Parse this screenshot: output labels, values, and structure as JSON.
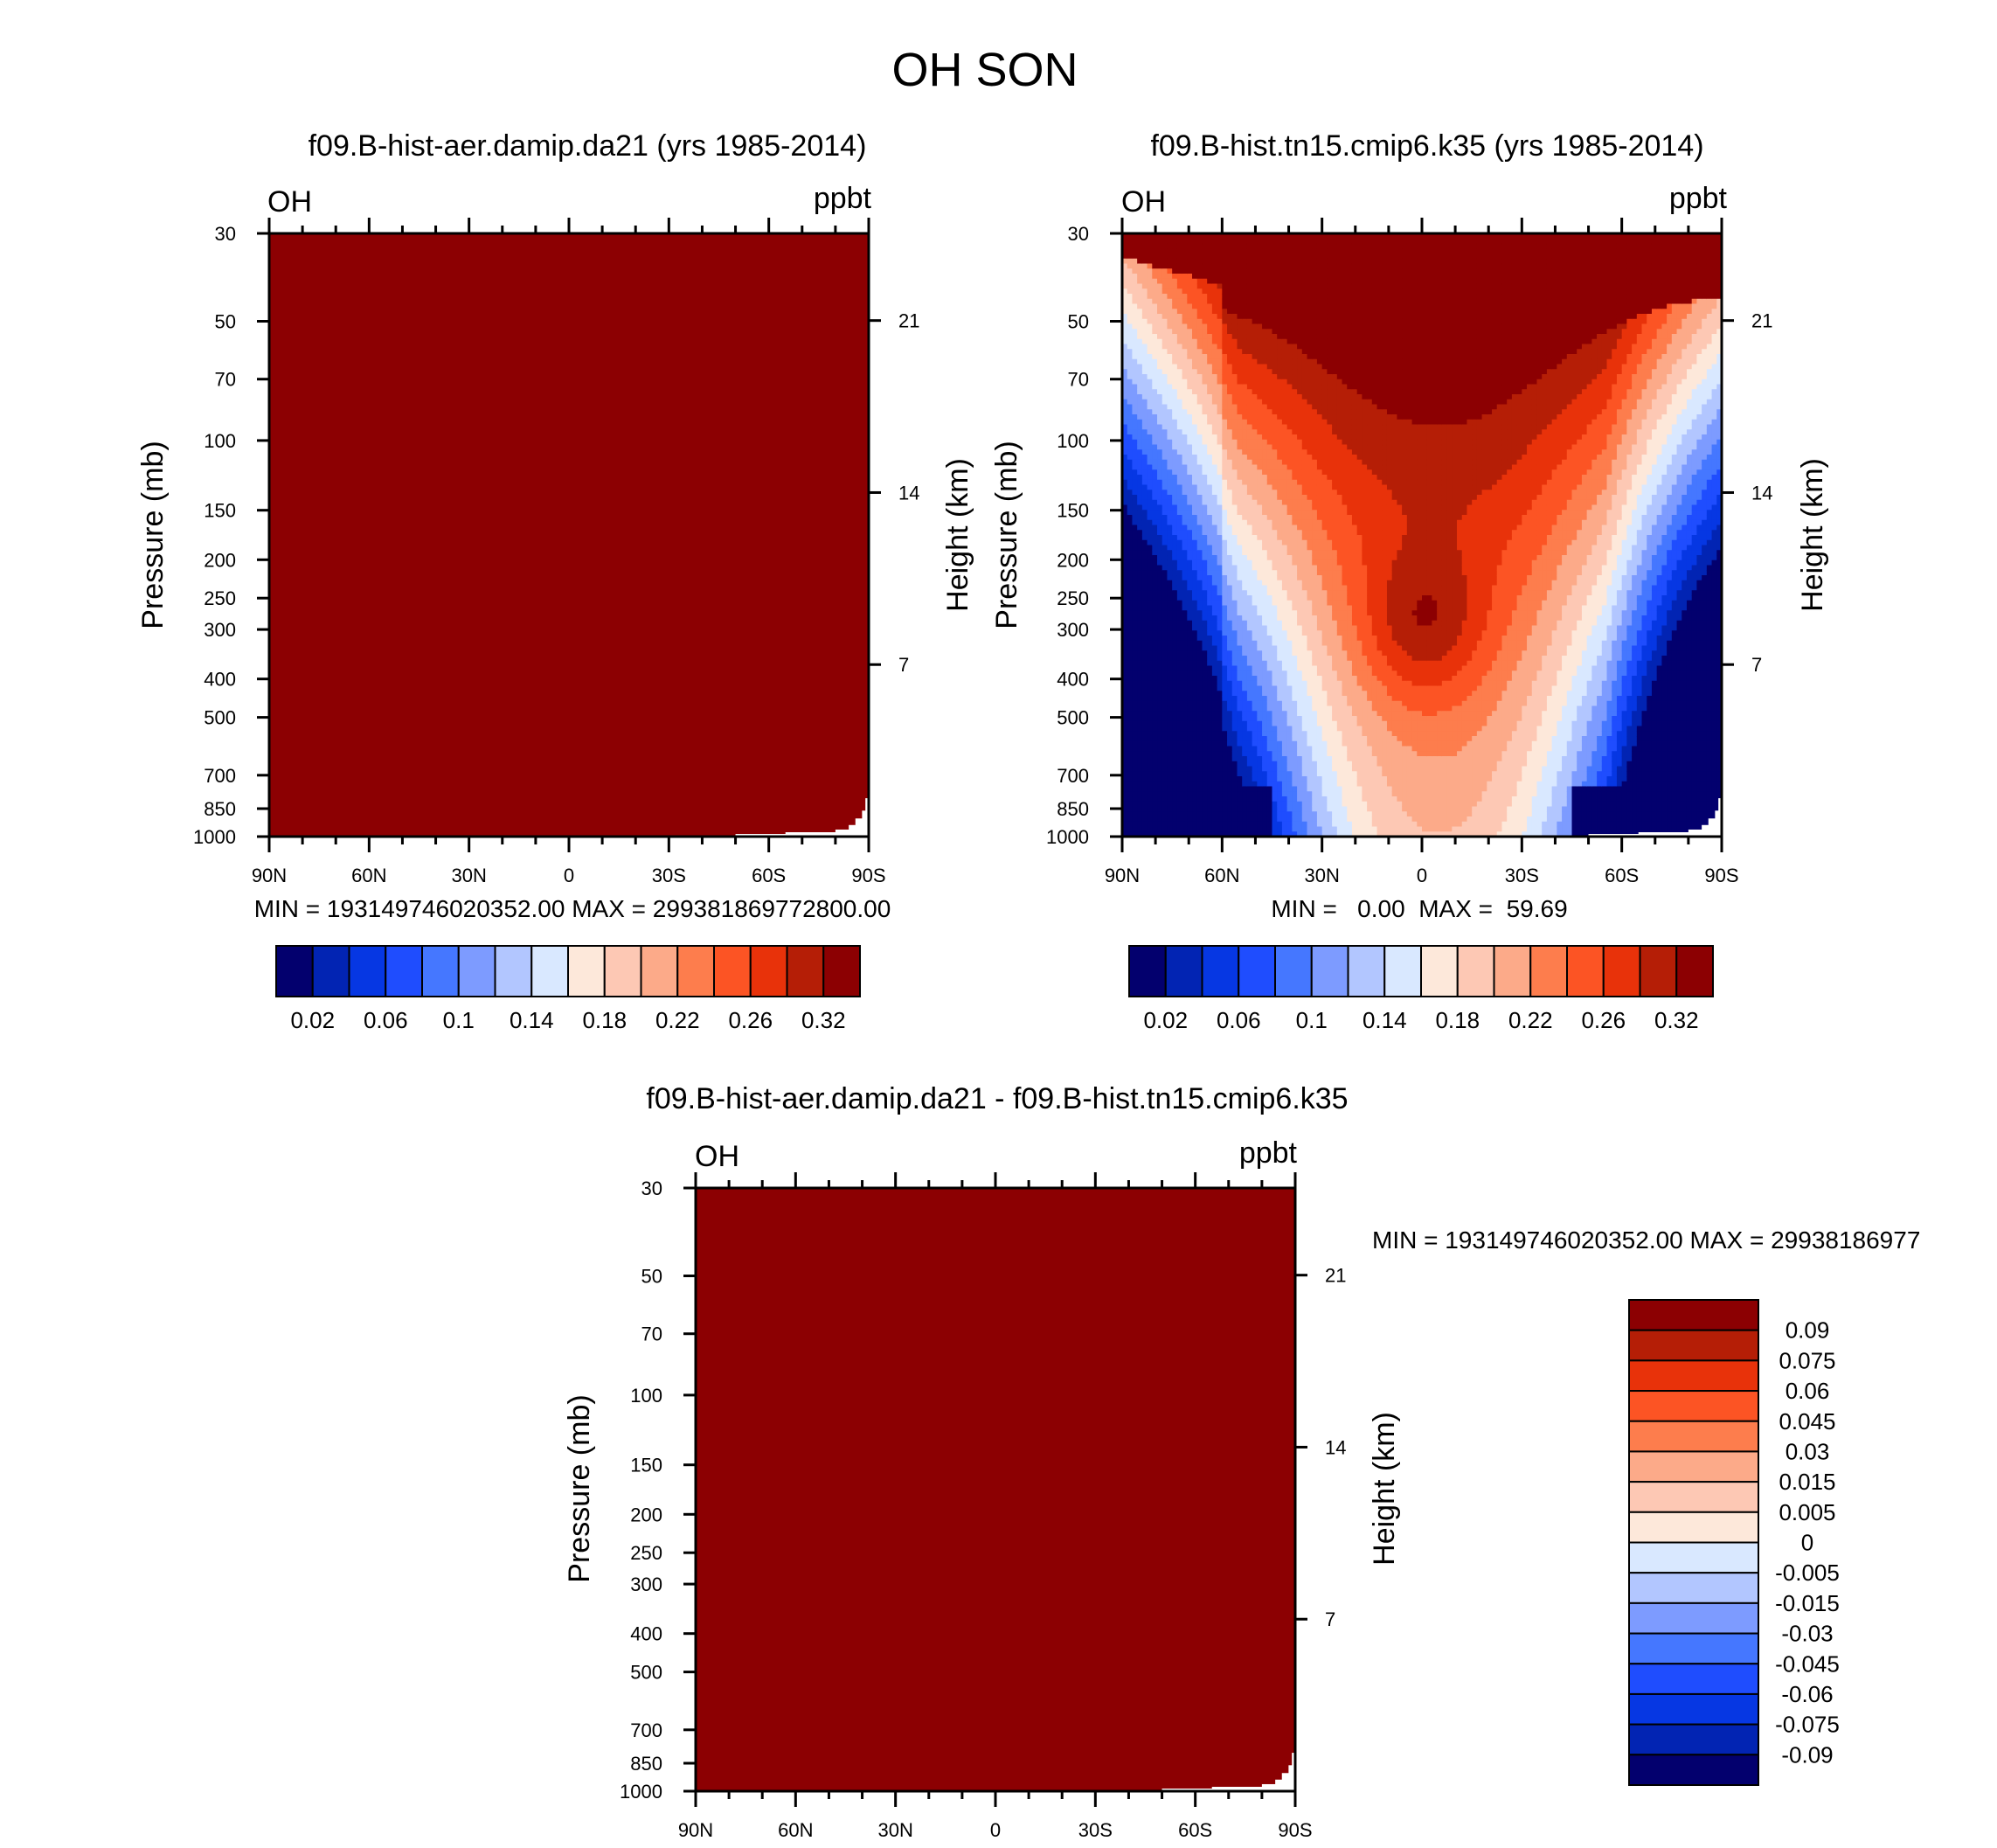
{
  "figure": {
    "title": "OH SON"
  },
  "colors": {
    "seq15": [
      "#03006e",
      "#0224b3",
      "#0637e3",
      "#1f4dfe",
      "#4577ff",
      "#7d9bff",
      "#b2c6ff",
      "#d9e8ff",
      "#fde8da",
      "#fdc8b4",
      "#fcaa89",
      "#fd7d4d",
      "#fc5424",
      "#e8320a",
      "#b51e06",
      "#8c0002"
    ],
    "diff16": [
      "#03006e",
      "#0224b3",
      "#0637e3",
      "#1f4dfe",
      "#4577ff",
      "#7d9bff",
      "#b2c6ff",
      "#d9e8ff",
      "#fde8da",
      "#fdc8b4",
      "#fcaa89",
      "#fd7d4d",
      "#fc5424",
      "#e8320a",
      "#b51e06",
      "#8c0002"
    ]
  },
  "chart_data": [
    {
      "id": "panel-a",
      "type": "heatmap",
      "title": "f09.B-hist-aer.damip.da21 (yrs 1985-2014)",
      "variable": "OH",
      "units": "ppbt",
      "ylabel": "Pressure (mb)",
      "ylabel_right": "Height (km)",
      "pressure_ticks": [
        "30",
        "50",
        "70",
        "100",
        "150",
        "200",
        "250",
        "300",
        "400",
        "500",
        "700",
        "850",
        "1000"
      ],
      "pressure_values": [
        30,
        50,
        70,
        100,
        150,
        200,
        250,
        300,
        400,
        500,
        700,
        850,
        1000
      ],
      "height_ticks": [
        "21",
        "14",
        "7"
      ],
      "height_values": [
        21,
        14,
        7
      ],
      "lat_ticks": [
        "90N",
        "60N",
        "30N",
        "0",
        "30S",
        "60S",
        "90S"
      ],
      "lat_values": [
        90,
        60,
        30,
        0,
        -30,
        -60,
        -90
      ],
      "ylim": [
        30,
        1000
      ],
      "xlim": [
        90,
        -90
      ],
      "stats": "MIN = 193149746020352.00  MAX = 299381869772800.00",
      "fill": "saturated",
      "colorbar": {
        "orientation": "horizontal",
        "labels": [
          "0.02",
          "0.06",
          "0.1",
          "0.14",
          "0.18",
          "0.22",
          "0.26",
          "0.32"
        ],
        "levels": [
          0.02,
          0.04,
          0.06,
          0.08,
          0.1,
          0.12,
          0.14,
          0.16,
          0.18,
          0.2,
          0.22,
          0.24,
          0.26,
          0.28,
          0.32
        ]
      }
    },
    {
      "id": "panel-b",
      "type": "heatmap",
      "title": "f09.B-hist.tn15.cmip6.k35 (yrs 1985-2014)",
      "variable": "OH",
      "units": "ppbt",
      "ylabel": "Pressure (mb)",
      "ylabel_right": "Height (km)",
      "pressure_ticks": [
        "30",
        "50",
        "70",
        "100",
        "150",
        "200",
        "250",
        "300",
        "400",
        "500",
        "700",
        "850",
        "1000"
      ],
      "pressure_values": [
        30,
        50,
        70,
        100,
        150,
        200,
        250,
        300,
        400,
        500,
        700,
        850,
        1000
      ],
      "height_ticks": [
        "21",
        "14",
        "7"
      ],
      "height_values": [
        21,
        14,
        7
      ],
      "lat_ticks": [
        "90N",
        "60N",
        "30N",
        "0",
        "30S",
        "60S",
        "90S"
      ],
      "lat_values": [
        90,
        60,
        30,
        0,
        -30,
        -60,
        -90
      ],
      "ylim": [
        30,
        1000
      ],
      "xlim": [
        90,
        -90
      ],
      "stats": "MIN =   0.00  MAX =  59.69",
      "min": 0.0,
      "max": 59.69,
      "fill": "field",
      "colorbar": {
        "orientation": "horizontal",
        "labels": [
          "0.02",
          "0.06",
          "0.1",
          "0.14",
          "0.18",
          "0.22",
          "0.26",
          "0.32"
        ],
        "levels": [
          0.02,
          0.04,
          0.06,
          0.08,
          0.1,
          0.12,
          0.14,
          0.16,
          0.18,
          0.2,
          0.22,
          0.24,
          0.26,
          0.28,
          0.32
        ]
      }
    },
    {
      "id": "panel-c",
      "type": "heatmap",
      "title": "f09.B-hist-aer.damip.da21 - f09.B-hist.tn15.cmip6.k35",
      "variable": "OH",
      "units": "ppbt",
      "ylabel": "Pressure (mb)",
      "ylabel_right": "Height (km)",
      "pressure_ticks": [
        "30",
        "50",
        "70",
        "100",
        "150",
        "200",
        "250",
        "300",
        "400",
        "500",
        "700",
        "850",
        "1000"
      ],
      "pressure_values": [
        30,
        50,
        70,
        100,
        150,
        200,
        250,
        300,
        400,
        500,
        700,
        850,
        1000
      ],
      "height_ticks": [
        "21",
        "14",
        "7"
      ],
      "height_values": [
        21,
        14,
        7
      ],
      "lat_ticks": [
        "90N",
        "60N",
        "30N",
        "0",
        "30S",
        "60S",
        "90S"
      ],
      "lat_values": [
        90,
        60,
        30,
        0,
        -30,
        -60,
        -90
      ],
      "ylim": [
        30,
        1000
      ],
      "xlim": [
        90,
        -90
      ],
      "stats": "MIN = 193149746020352.00  MAX = 29938186977",
      "fill": "saturated",
      "colorbar": {
        "orientation": "vertical",
        "labels": [
          "0.09",
          "0.075",
          "0.06",
          "0.045",
          "0.03",
          "0.015",
          "0.005",
          "0",
          "-0.005",
          "-0.015",
          "-0.03",
          "-0.045",
          "-0.06",
          "-0.075",
          "-0.09"
        ],
        "levels": [
          0.09,
          0.075,
          0.06,
          0.045,
          0.03,
          0.015,
          0.005,
          0,
          -0.005,
          -0.015,
          -0.03,
          -0.045,
          -0.06,
          -0.075,
          -0.09
        ]
      }
    }
  ]
}
